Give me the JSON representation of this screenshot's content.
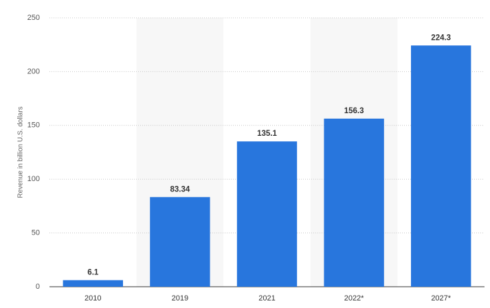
{
  "chart_data": {
    "type": "bar",
    "y_axis_label": "Revenue in billion U.S. dollars",
    "categories": [
      "2010",
      "2019",
      "2021",
      "2022*",
      "2027*"
    ],
    "values": [
      6.1,
      83.34,
      135.1,
      156.3,
      224.3
    ],
    "color": "#2876dd",
    "ylim": [
      0,
      250
    ],
    "yticks": [
      0,
      50,
      100,
      150,
      200,
      250
    ],
    "grid": true
  }
}
